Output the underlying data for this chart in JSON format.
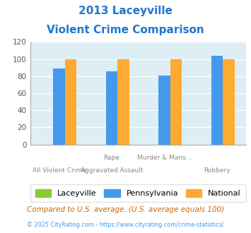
{
  "title_line1": "2013 Laceyville",
  "title_line2": "Violent Crime Comparison",
  "title_color": "#2277cc",
  "x_labels_row1": [
    "",
    "Rape",
    "Murder & Mans...",
    ""
  ],
  "x_labels_row2": [
    "All Violent Crime",
    "Aggravated Assault",
    "",
    "Robbery"
  ],
  "laceyville": [
    0,
    0,
    0,
    0
  ],
  "pennsylvania": [
    89,
    86,
    81,
    104
  ],
  "national": [
    100,
    100,
    100,
    100
  ],
  "laceyville_color": "#88cc33",
  "pennsylvania_color": "#4499ee",
  "national_color": "#ffaa33",
  "ylim": [
    0,
    120
  ],
  "yticks": [
    0,
    20,
    40,
    60,
    80,
    100,
    120
  ],
  "plot_bg": "#ddeef5",
  "legend_labels": [
    "Laceyville",
    "Pennsylvania",
    "National"
  ],
  "footnote1": "Compared to U.S. average. (U.S. average equals 100)",
  "footnote2": "© 2025 CityRating.com - https://www.cityrating.com/crime-statistics/",
  "footnote1_color": "#cc6600",
  "footnote2_color": "#4499ee",
  "footnote2_size": 5.8,
  "footnote1_size": 7.5
}
